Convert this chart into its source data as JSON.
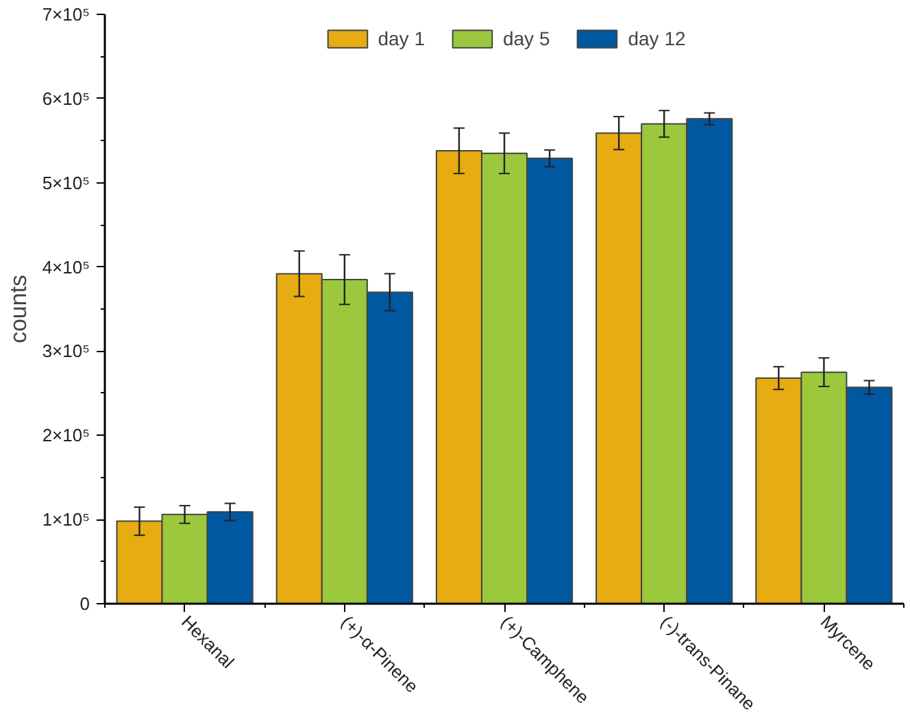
{
  "chart_data": {
    "type": "bar",
    "ylabel": "counts",
    "categories": [
      "Hexanal",
      "(+)-α-Pinene",
      "(+)-Camphene",
      "(-)-trans-Pinane",
      "Myrcene"
    ],
    "series": [
      {
        "name": "day 1",
        "color": "#e6ac12",
        "values": [
          98000,
          392000,
          538000,
          559000,
          268000
        ],
        "errors": [
          16700,
          27000,
          27000,
          19600,
          13500
        ]
      },
      {
        "name": "day 5",
        "color": "#9bc83c",
        "values": [
          106000,
          385000,
          535000,
          570000,
          275000
        ],
        "errors": [
          10500,
          29500,
          24000,
          15800,
          17000
        ]
      },
      {
        "name": "day 12",
        "color": "#0058a0",
        "values": [
          109000,
          370000,
          529000,
          576000,
          257000
        ],
        "errors": [
          10200,
          22000,
          10000,
          7000,
          8000
        ]
      }
    ],
    "ylim": [
      0,
      700000
    ],
    "yticks": [
      0,
      {
        "value": 100000,
        "label": "1×10⁵"
      },
      {
        "value": 200000,
        "label": "2×10⁵"
      },
      {
        "value": 300000,
        "label": "3×10⁵"
      },
      {
        "value": 400000,
        "label": "4×10⁵"
      },
      {
        "value": 500000,
        "label": "5×10⁵"
      },
      {
        "value": 600000,
        "label": "6×10⁵"
      },
      {
        "value": 700000,
        "label": "7×10⁵"
      }
    ],
    "grid": false,
    "legend": "top"
  }
}
